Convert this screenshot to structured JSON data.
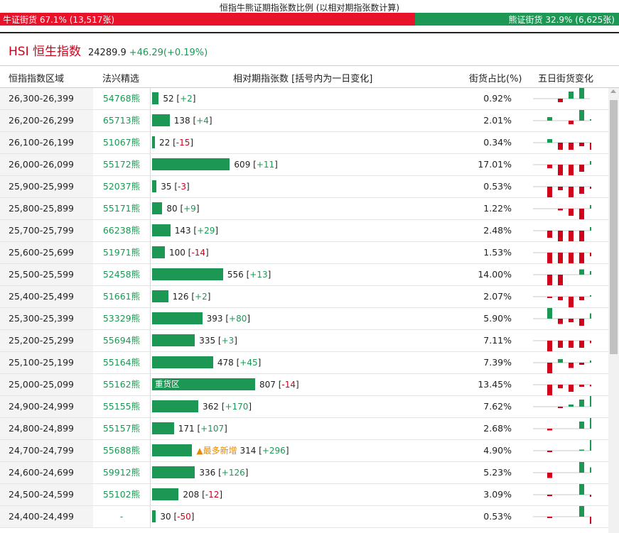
{
  "ratio": {
    "title": "恒指牛熊证期指张数比例 (以相对期指张数计算)",
    "bull_label": "牛证街货 67.1% (13,517张)",
    "bear_label": "熊证街货 32.9% (6,625张)",
    "bull_pct": 67.1,
    "bear_pct": 32.9,
    "bull_color": "#e8122a",
    "bear_color": "#1d9754"
  },
  "index": {
    "name": "HSI 恒生指数",
    "value": "24289.9",
    "change": "+46.29(+0.19%)"
  },
  "table": {
    "headers": {
      "range": "恒指指数区域",
      "pick": "法兴精选",
      "contracts": "相对期指张数 [括号内为一日变化]",
      "pct": "街货占比(%)",
      "spark": "五日街货变化"
    },
    "max_contracts": 807,
    "rows": [
      {
        "range": "26,300-26,399",
        "pick": "54768熊",
        "count": "52",
        "change": "+2",
        "pct": "0.92%",
        "spark": [
          0,
          -1,
          2,
          3,
          0
        ]
      },
      {
        "range": "26,200-26,299",
        "pick": "65713熊",
        "count": "138",
        "change": "+4",
        "pct": "2.01%",
        "spark": [
          1,
          0,
          -1,
          3,
          0.4
        ]
      },
      {
        "range": "26,100-26,199",
        "pick": "51067熊",
        "count": "22",
        "change": "-15",
        "pct": "0.34%",
        "spark": [
          1,
          -2,
          -2,
          -1,
          -2
        ]
      },
      {
        "range": "26,000-26,099",
        "pick": "55172熊",
        "count": "609",
        "change": "+11",
        "pct": "17.01%",
        "spark": [
          -1,
          -3,
          -3,
          -2,
          1
        ]
      },
      {
        "range": "25,900-25,999",
        "pick": "52037熊",
        "count": "35",
        "change": "-3",
        "pct": "0.53%",
        "spark": [
          -3,
          -1,
          -3,
          -2,
          -0.6
        ]
      },
      {
        "range": "25,800-25,899",
        "pick": "55171熊",
        "count": "80",
        "change": "+9",
        "pct": "1.22%",
        "spark": [
          0,
          -0.5,
          -2,
          -3,
          1
        ]
      },
      {
        "range": "25,700-25,799",
        "pick": "66238熊",
        "count": "143",
        "change": "+29",
        "pct": "2.48%",
        "spark": [
          -2,
          -3,
          -3,
          -3,
          1
        ]
      },
      {
        "range": "25,600-25,699",
        "pick": "51971熊",
        "count": "100",
        "change": "-14",
        "pct": "1.53%",
        "spark": [
          -3,
          -3,
          -3,
          -3,
          -1
        ]
      },
      {
        "range": "25,500-25,599",
        "pick": "52458熊",
        "count": "556",
        "change": "+13",
        "pct": "14.00%",
        "spark": [
          -3,
          -3,
          0,
          1.5,
          1
        ]
      },
      {
        "range": "25,400-25,499",
        "pick": "51661熊",
        "count": "126",
        "change": "+2",
        "pct": "2.07%",
        "spark": [
          -0.4,
          -1,
          -3,
          -1,
          0.4
        ]
      },
      {
        "range": "25,300-25,399",
        "pick": "53329熊",
        "count": "393",
        "change": "+80",
        "pct": "5.90%",
        "spark": [
          3,
          -1.5,
          -1,
          -2,
          1.5
        ]
      },
      {
        "range": "25,200-25,299",
        "pick": "55694熊",
        "count": "335",
        "change": "+3",
        "pct": "7.11%",
        "spark": [
          -3,
          -2,
          -2,
          -2,
          -0.7
        ]
      },
      {
        "range": "25,100-25,199",
        "pick": "55164熊",
        "count": "478",
        "change": "+45",
        "pct": "7.39%",
        "spark": [
          -3,
          1,
          -1.5,
          -0.6,
          0.6
        ]
      },
      {
        "range": "25,000-25,099",
        "pick": "55162熊",
        "count": "807",
        "change": "-14",
        "pct": "13.45%",
        "tag": "重货区",
        "spark": [
          -3,
          -1,
          -2,
          -0.6,
          -0.5
        ]
      },
      {
        "range": "24,900-24,999",
        "pick": "55155熊",
        "count": "362",
        "change": "+170",
        "pct": "7.62%",
        "spark": [
          0,
          -0.4,
          0.6,
          2,
          3
        ]
      },
      {
        "range": "24,800-24,899",
        "pick": "55157熊",
        "count": "171",
        "change": "+107",
        "pct": "2.68%",
        "spark": [
          -0.5,
          0,
          0,
          2,
          3
        ]
      },
      {
        "range": "24,700-24,799",
        "pick": "55688熊",
        "count": "314",
        "change": "+296",
        "pct": "4.90%",
        "tag": "▲最多新增",
        "spark": [
          -0.4,
          0,
          0,
          0.3,
          3
        ]
      },
      {
        "range": "24,600-24,699",
        "pick": "59912熊",
        "count": "336",
        "change": "+126",
        "pct": "5.23%",
        "spark": [
          -1.5,
          0,
          0,
          3,
          1.5
        ]
      },
      {
        "range": "24,500-24,599",
        "pick": "55102熊",
        "count": "208",
        "change": "-12",
        "pct": "3.09%",
        "spark": [
          -0.4,
          0,
          0,
          3,
          -0.6
        ]
      },
      {
        "range": "24,400-24,499",
        "pick": "-",
        "count": "30",
        "change": "-50",
        "pct": "0.53%",
        "spark": [
          -0.4,
          0,
          0,
          3,
          -2
        ]
      }
    ]
  }
}
